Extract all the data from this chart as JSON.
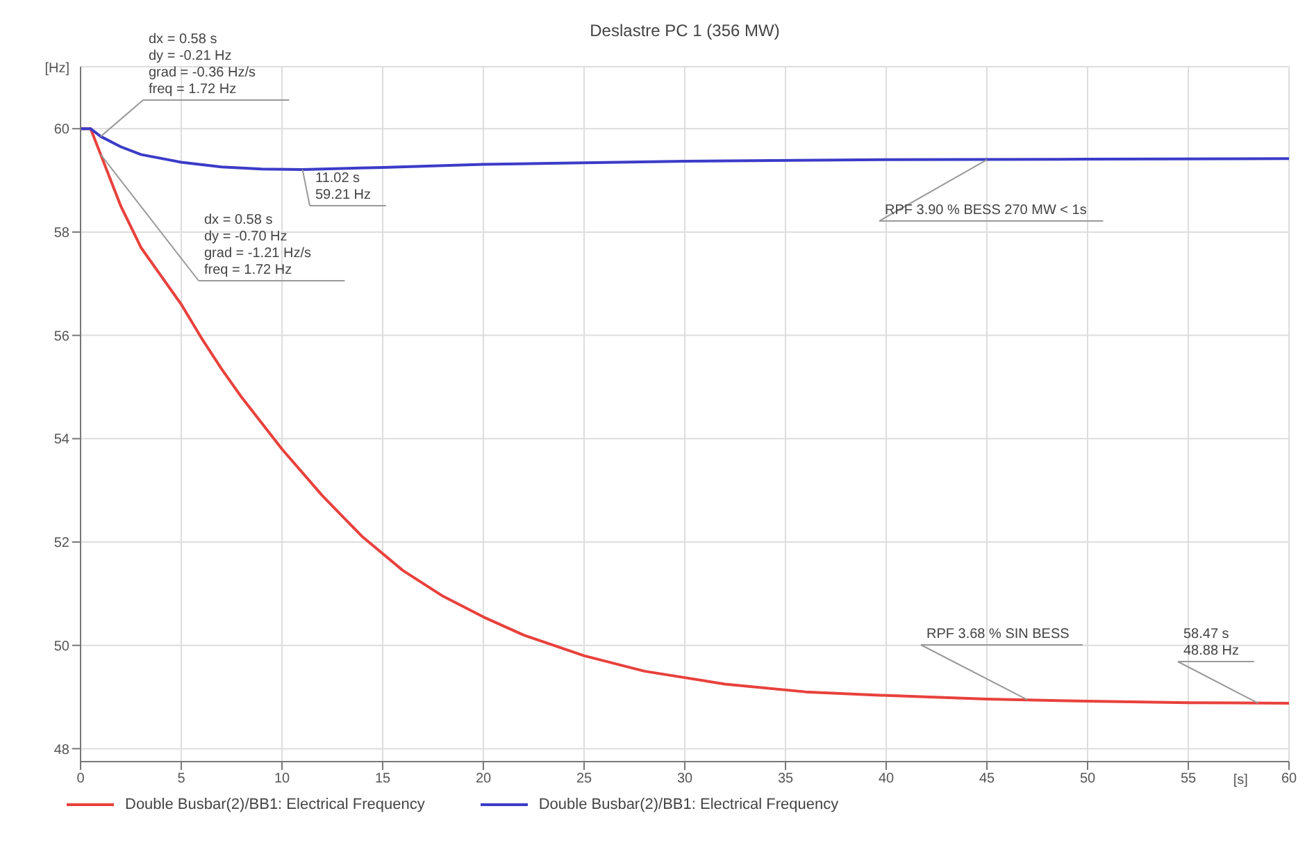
{
  "chart_data": {
    "type": "line",
    "title": "Deslastre PC 1 (356 MW)",
    "xlabel": "[s]",
    "ylabel": "[Hz]",
    "xlim": [
      0,
      60
    ],
    "xticks": [
      0,
      5,
      10,
      15,
      20,
      25,
      30,
      35,
      40,
      45,
      50,
      55,
      60
    ],
    "ylim": [
      47.75,
      61.2
    ],
    "yticks": [
      48,
      50,
      52,
      54,
      56,
      58,
      60
    ],
    "grid": true,
    "legend": "bottom",
    "line_style": "solid",
    "marker": "none",
    "series": [
      {
        "name": "Double Busbar(2)/BB1: Electrical Frequency",
        "color": "#e8413c",
        "x": [
          0,
          0.5,
          1,
          2,
          3,
          4,
          5,
          6,
          7,
          8,
          10,
          12,
          14,
          16,
          18,
          20,
          22,
          25,
          28,
          32,
          36,
          40,
          45,
          50,
          55,
          60
        ],
        "values": [
          60,
          60,
          59.5,
          58.5,
          57.7,
          57.15,
          56.6,
          55.95,
          55.35,
          54.8,
          53.8,
          52.9,
          52.1,
          51.45,
          50.95,
          50.55,
          50.2,
          49.8,
          49.5,
          49.25,
          49.1,
          49.03,
          48.96,
          48.92,
          48.89,
          48.88
        ]
      },
      {
        "name": "Double Busbar(2)/BB1: Electrical Frequency",
        "color": "#3b3bc8",
        "x": [
          0,
          0.5,
          1,
          2,
          3,
          5,
          7,
          9,
          11.02,
          15,
          20,
          30,
          40,
          50,
          60
        ],
        "values": [
          60,
          60,
          59.85,
          59.65,
          59.5,
          59.35,
          59.26,
          59.22,
          59.21,
          59.25,
          59.31,
          59.37,
          59.4,
          59.41,
          59.42
        ]
      }
    ],
    "annotations": [
      {
        "text": "dx = 0.58 s\ndy = -0.21 Hz\ngrad = -0.36 Hz/s\nfreq = 1.72 Hz",
        "x": 1,
        "y": 59.85
      },
      {
        "text": "dx = 0.58 s\ndy = -0.70 Hz\ngrad = -1.21 Hz/s\nfreq = 1.72 Hz",
        "x": 1,
        "y": 59.5
      },
      {
        "text": "11.02 s\n59.21 Hz",
        "x": 11.02,
        "y": 59.21
      },
      {
        "text": "RPF 3.90 % BESS 270 MW < 1s",
        "x": 45,
        "y": 59.4
      },
      {
        "text": "RPF 3.68 % SIN BESS",
        "x": 47,
        "y": 48.95
      },
      {
        "text": "58.47 s\n48.88 Hz",
        "x": 58.47,
        "y": 48.88
      }
    ]
  }
}
